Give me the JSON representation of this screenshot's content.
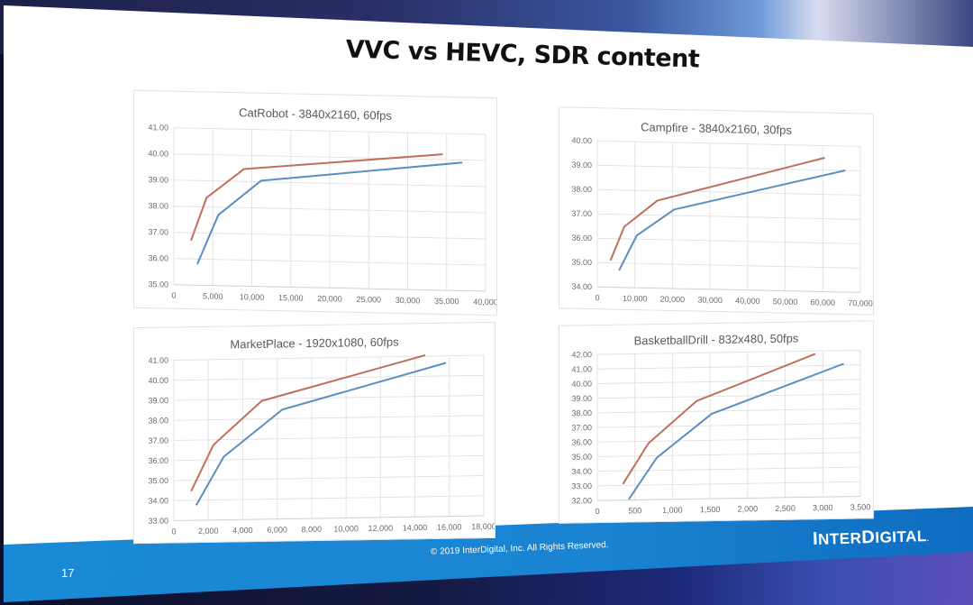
{
  "slide": {
    "title": "VVC vs HEVC, SDR content",
    "footer": {
      "copyright": "© 2019 InterDigital, Inc. All Rights Reserved.",
      "page_number": "17",
      "logo": "InterDigital"
    }
  },
  "colors": {
    "vvc": "#c0705a",
    "hevc": "#5b8fc0",
    "grid": "#e3e3e3",
    "footer_band": "#1a84d2"
  },
  "chart_data": [
    {
      "type": "line",
      "title": "CatRobot - 3840x2160, 60fps",
      "xlabel": "",
      "ylabel": "",
      "xlim": [
        0,
        40000
      ],
      "ylim": [
        35,
        41
      ],
      "x_ticks": [
        "0",
        "5,000",
        "10,000",
        "15,000",
        "20,000",
        "25,000",
        "30,000",
        "35,000",
        "40,000"
      ],
      "y_ticks": [
        "35.00",
        "36.00",
        "37.00",
        "38.00",
        "39.00",
        "40.00",
        "41.00"
      ],
      "grid": true,
      "legend": "none",
      "series": [
        {
          "name": "VVC",
          "color": "#c0705a",
          "x": [
            2200,
            4200,
            9000,
            34500
          ],
          "y": [
            36.7,
            38.35,
            39.48,
            40.2
          ]
        },
        {
          "name": "HEVC",
          "color": "#5b8fc0",
          "x": [
            3000,
            5700,
            11200,
            37000
          ],
          "y": [
            35.8,
            37.7,
            39.05,
            39.9
          ]
        }
      ]
    },
    {
      "type": "line",
      "title": "Campfire - 3840x2160, 30fps",
      "xlabel": "",
      "ylabel": "",
      "xlim": [
        0,
        70000
      ],
      "ylim": [
        34,
        40
      ],
      "x_ticks": [
        "0",
        "10,000",
        "20,000",
        "30,000",
        "40,000",
        "50,000",
        "60,000",
        "70,000"
      ],
      "y_ticks": [
        "34.00",
        "35.00",
        "36.00",
        "37.00",
        "38.00",
        "39.00",
        "40.00"
      ],
      "grid": true,
      "legend": "none",
      "series": [
        {
          "name": "VVC",
          "color": "#c0705a",
          "x": [
            3500,
            7200,
            16000,
            60500
          ],
          "y": [
            35.1,
            36.5,
            37.6,
            39.5
          ]
        },
        {
          "name": "HEVC",
          "color": "#5b8fc0",
          "x": [
            5800,
            10500,
            20500,
            66000
          ],
          "y": [
            34.7,
            36.15,
            37.25,
            39.0
          ]
        }
      ]
    },
    {
      "type": "line",
      "title": "MarketPlace - 1920x1080, 60fps",
      "xlabel": "",
      "ylabel": "",
      "xlim": [
        0,
        18000
      ],
      "ylim": [
        33,
        41
      ],
      "x_ticks": [
        "0",
        "2,000",
        "4,000",
        "6,000",
        "8,000",
        "10,000",
        "12,000",
        "14,000",
        "16,000",
        "18,000"
      ],
      "y_ticks": [
        "33.00",
        "34.00",
        "35.00",
        "36.00",
        "37.00",
        "38.00",
        "39.00",
        "40.00",
        "41.00"
      ],
      "grid": true,
      "legend": "none",
      "series": [
        {
          "name": "VVC",
          "color": "#c0705a",
          "x": [
            1000,
            2300,
            5100,
            14600
          ],
          "y": [
            34.45,
            36.75,
            38.9,
            41.05
          ]
        },
        {
          "name": "HEVC",
          "color": "#5b8fc0",
          "x": [
            1300,
            2900,
            6300,
            15800
          ],
          "y": [
            33.75,
            36.15,
            38.45,
            40.65
          ]
        }
      ]
    },
    {
      "type": "line",
      "title": "BasketballDrill - 832x480, 50fps",
      "xlabel": "",
      "ylabel": "",
      "xlim": [
        0,
        3500
      ],
      "ylim": [
        32,
        42
      ],
      "x_ticks": [
        "0",
        "500",
        "1,000",
        "1,500",
        "2,000",
        "2,500",
        "3,000",
        "3,500"
      ],
      "y_ticks": [
        "32.00",
        "33.00",
        "34.00",
        "35.00",
        "36.00",
        "37.00",
        "38.00",
        "39.00",
        "40.00",
        "41.00",
        "42.00"
      ],
      "grid": true,
      "legend": "none",
      "series": [
        {
          "name": "VVC",
          "color": "#c0705a",
          "x": [
            340,
            680,
            1320,
            2900
          ],
          "y": [
            33.1,
            35.85,
            38.7,
            41.8
          ]
        },
        {
          "name": "HEVC",
          "color": "#5b8fc0",
          "x": [
            420,
            790,
            1520,
            3280
          ],
          "y": [
            32.05,
            34.85,
            37.8,
            41.1
          ]
        }
      ]
    }
  ]
}
